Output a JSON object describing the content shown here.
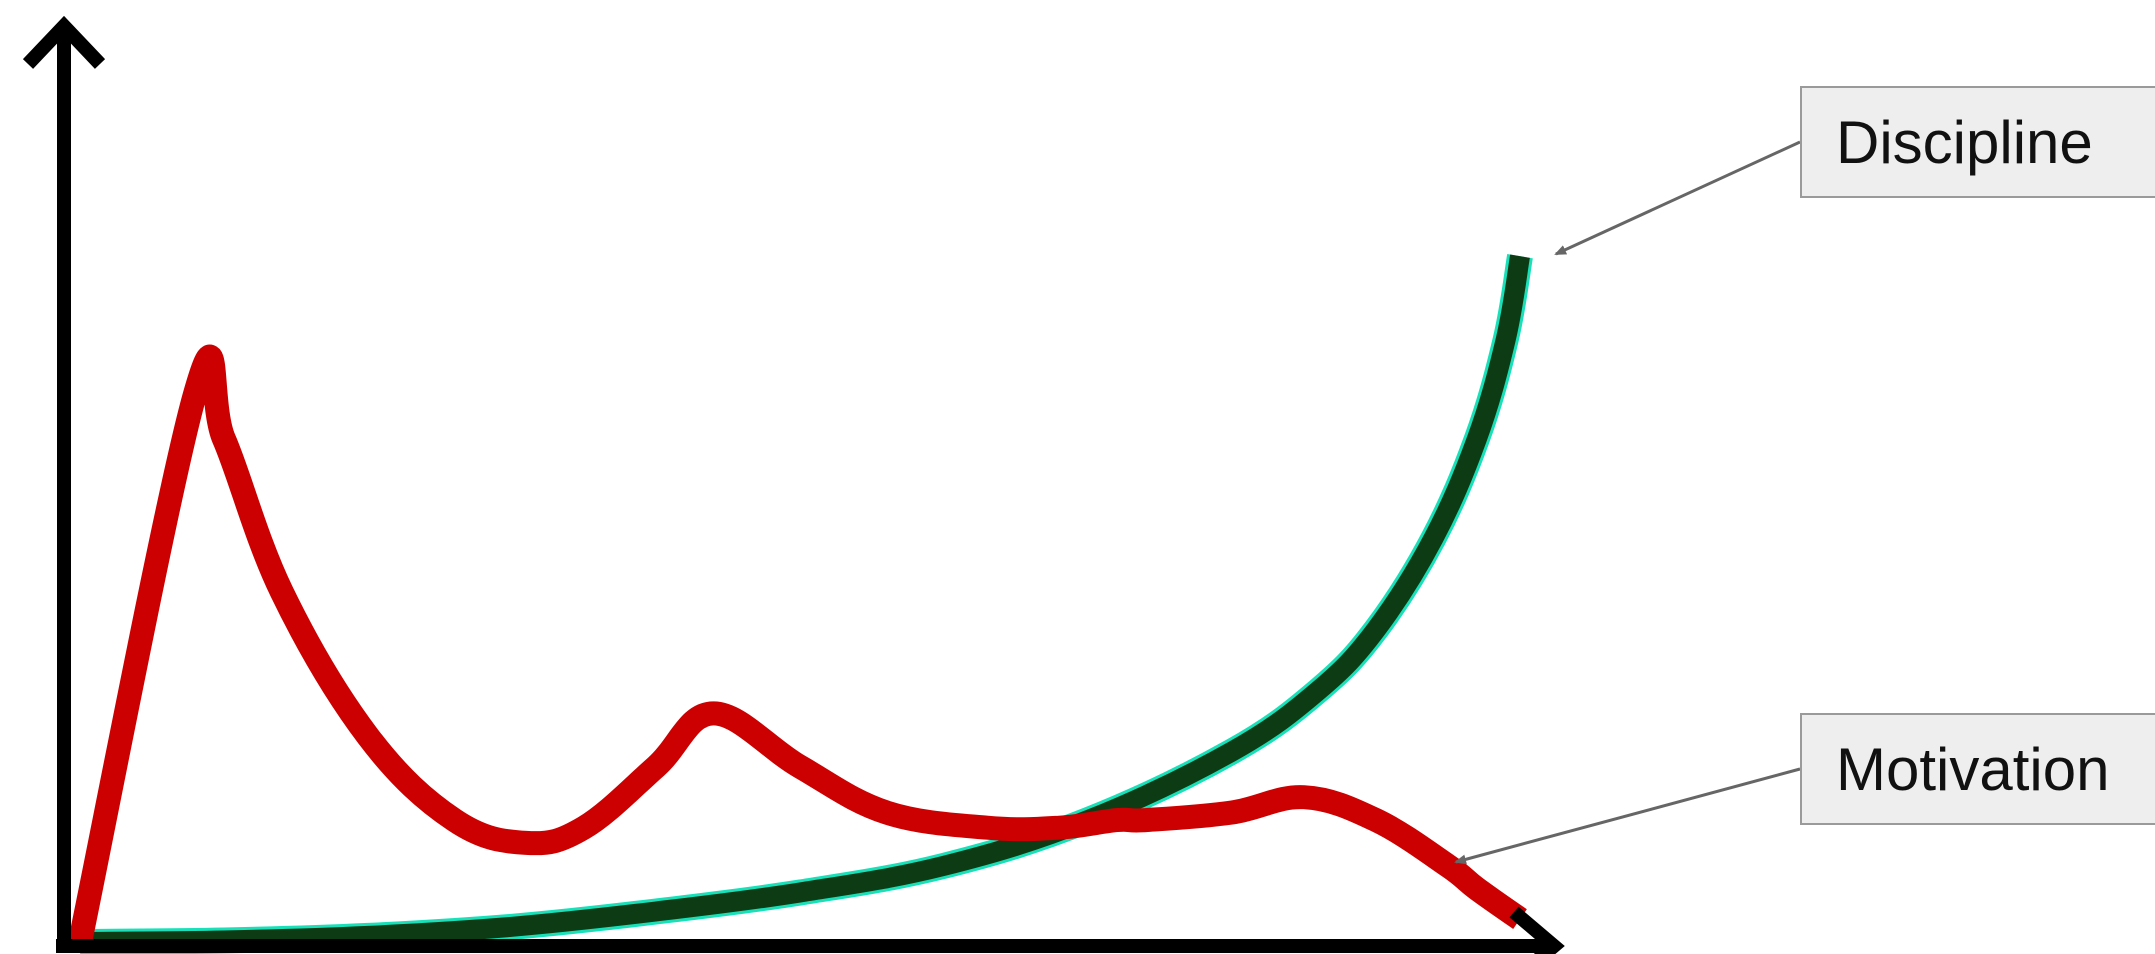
{
  "chart_data": {
    "type": "line",
    "title": "",
    "xlabel": "",
    "ylabel": "",
    "xlim": [
      0,
      100
    ],
    "ylim": [
      0,
      100
    ],
    "grid": false,
    "series": [
      {
        "name": "Discipline",
        "color": "#0d3b14",
        "edge_color": "#19e0b8",
        "x": [
          0,
          10,
          20,
          30,
          40,
          50,
          60,
          70,
          80,
          86,
          90,
          94,
          97,
          99,
          100
        ],
        "y": [
          0,
          0.2,
          0.8,
          2,
          4,
          6.5,
          10,
          16,
          25,
          33,
          41,
          53,
          66,
          79,
          90
        ]
      },
      {
        "name": "Motivation",
        "color": "#cc0000",
        "x": [
          0,
          8,
          10,
          14,
          20,
          26,
          31,
          35,
          40,
          44,
          50,
          56,
          63,
          68,
          72,
          74,
          80,
          85,
          90,
          95,
          97,
          100
        ],
        "y": [
          0,
          72,
          66,
          46,
          27,
          16,
          13,
          15,
          23,
          30,
          23,
          17,
          15,
          15,
          16,
          16,
          17,
          19,
          16,
          10,
          7,
          3
        ]
      }
    ],
    "annotations": [
      {
        "text": "Discipline",
        "series": "Discipline"
      },
      {
        "text": "Motivation",
        "series": "Motivation"
      }
    ]
  }
}
